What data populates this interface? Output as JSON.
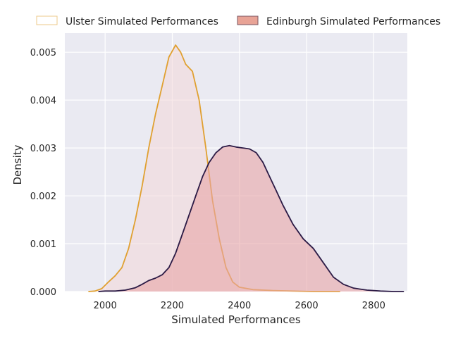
{
  "chart_data": {
    "type": "area",
    "title": "",
    "xlabel": "Simulated Performances",
    "ylabel": "Density",
    "xlim": [
      1880,
      2900
    ],
    "ylim": [
      0,
      0.0054
    ],
    "xticks": [
      2000,
      2200,
      2400,
      2600,
      2800
    ],
    "yticks": [
      0.0,
      0.001,
      0.002,
      0.003,
      0.004,
      0.005
    ],
    "ytick_labels": [
      "0.000",
      "0.001",
      "0.002",
      "0.003",
      "0.004",
      "0.005"
    ],
    "grid": true,
    "legend_position": "top",
    "series": [
      {
        "name": "Ulster Simulated Performances",
        "line_color": "#e0a030",
        "fill_color": "#f2d7d9",
        "fill_opacity": 0.55,
        "points": [
          [
            1950,
            0
          ],
          [
            1970,
            1e-05
          ],
          [
            1990,
            6e-05
          ],
          [
            2010,
            0.0002
          ],
          [
            2030,
            0.00033
          ],
          [
            2050,
            0.0005
          ],
          [
            2070,
            0.0009
          ],
          [
            2090,
            0.0015
          ],
          [
            2110,
            0.0022
          ],
          [
            2130,
            0.003
          ],
          [
            2150,
            0.0037
          ],
          [
            2170,
            0.0043
          ],
          [
            2190,
            0.0049
          ],
          [
            2210,
            0.00515
          ],
          [
            2225,
            0.005
          ],
          [
            2240,
            0.00475
          ],
          [
            2260,
            0.0046
          ],
          [
            2280,
            0.004
          ],
          [
            2300,
            0.003
          ],
          [
            2320,
            0.0019
          ],
          [
            2340,
            0.0011
          ],
          [
            2360,
            0.0005
          ],
          [
            2380,
            0.0002
          ],
          [
            2400,
            9e-05
          ],
          [
            2440,
            4e-05
          ],
          [
            2500,
            2e-05
          ],
          [
            2560,
            1e-05
          ],
          [
            2620,
            0.0
          ],
          [
            2700,
            0.0
          ]
        ]
      },
      {
        "name": "Edinburgh Simulated Performances",
        "line_color": "#2b1a45",
        "fill_color": "#e8a5a6",
        "fill_opacity": 0.6,
        "points": [
          [
            1980,
            0
          ],
          [
            2000,
            1e-05
          ],
          [
            2030,
            1e-05
          ],
          [
            2060,
            3e-05
          ],
          [
            2090,
            8e-05
          ],
          [
            2110,
            0.00015
          ],
          [
            2130,
            0.00023
          ],
          [
            2150,
            0.00028
          ],
          [
            2170,
            0.00035
          ],
          [
            2190,
            0.0005
          ],
          [
            2210,
            0.0008
          ],
          [
            2230,
            0.0012
          ],
          [
            2250,
            0.0016
          ],
          [
            2270,
            0.002
          ],
          [
            2290,
            0.0024
          ],
          [
            2310,
            0.0027
          ],
          [
            2330,
            0.0029
          ],
          [
            2350,
            0.00302
          ],
          [
            2370,
            0.00305
          ],
          [
            2390,
            0.00302
          ],
          [
            2410,
            0.003
          ],
          [
            2430,
            0.00298
          ],
          [
            2450,
            0.0029
          ],
          [
            2470,
            0.0027
          ],
          [
            2490,
            0.0024
          ],
          [
            2510,
            0.0021
          ],
          [
            2530,
            0.0018
          ],
          [
            2560,
            0.0014
          ],
          [
            2590,
            0.0011
          ],
          [
            2620,
            0.0009
          ],
          [
            2650,
            0.0006
          ],
          [
            2680,
            0.0003
          ],
          [
            2710,
            0.00015
          ],
          [
            2740,
            7e-05
          ],
          [
            2780,
            3e-05
          ],
          [
            2820,
            1e-05
          ],
          [
            2860,
            0.0
          ],
          [
            2890,
            0.0
          ]
        ]
      }
    ]
  }
}
